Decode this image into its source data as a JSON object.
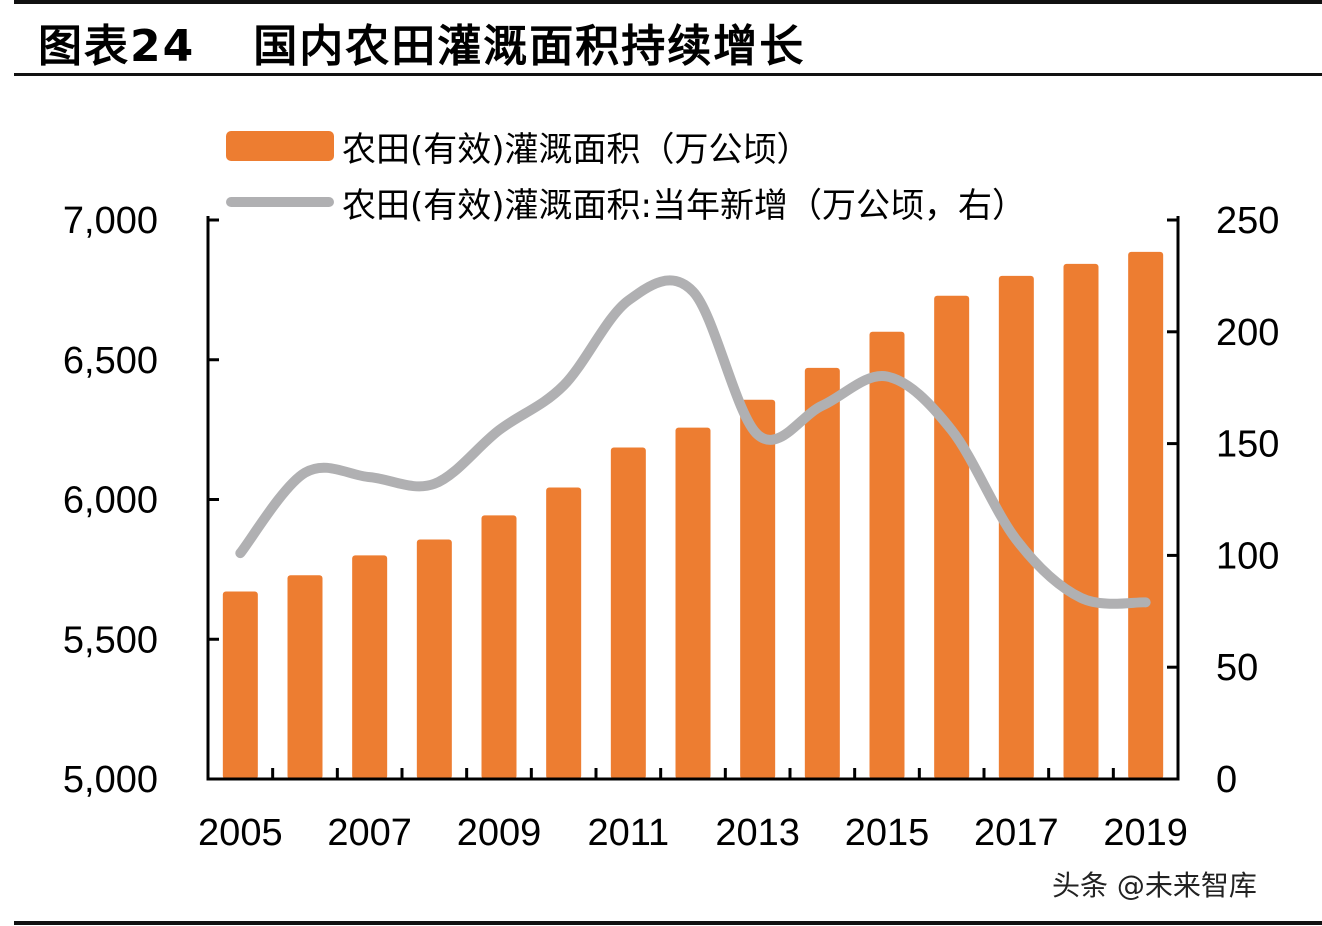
{
  "header": {
    "figure_label": "图表24",
    "title": "国内农田灌溉面积持续增长"
  },
  "watermark": "头条 @未来智库",
  "colors": {
    "bar": "#ED7D31",
    "line": "#B0B0B2",
    "axis": "#000000"
  },
  "chart_data": {
    "type": "bar+line",
    "title": "国内农田灌溉面积持续增长",
    "categories": [
      "2005",
      "2006",
      "2007",
      "2008",
      "2009",
      "2010",
      "2011",
      "2012",
      "2013",
      "2014",
      "2015",
      "2016",
      "2017",
      "2018",
      "2019"
    ],
    "x_tick_labels": [
      "2005",
      "2007",
      "2009",
      "2011",
      "2013",
      "2015",
      "2017",
      "2019"
    ],
    "series": [
      {
        "name": "农田(有效)灌溉面积（万公顷）",
        "type": "bar",
        "axis": "left",
        "values": [
          5671,
          5729,
          5800,
          5857,
          5943,
          6043,
          6186,
          6257,
          6357,
          6471,
          6600,
          6729,
          6800,
          6843,
          6886
        ]
      },
      {
        "name": "农田(有效)灌溉面积:当年新增（万公顷，右）",
        "type": "line",
        "axis": "right",
        "smooth": true,
        "values": [
          101,
          137,
          135,
          132,
          156,
          176,
          214,
          218,
          154,
          167,
          180,
          156,
          107,
          81,
          79
        ]
      }
    ],
    "y_left": {
      "lim": [
        5000,
        7000
      ],
      "ticks": [
        5000,
        5500,
        6000,
        6500,
        7000
      ],
      "tick_labels": [
        "5,000",
        "5,500",
        "6,000",
        "6,500",
        "7,000"
      ]
    },
    "y_right": {
      "lim": [
        0,
        250
      ],
      "ticks": [
        0,
        50,
        100,
        150,
        200,
        250
      ],
      "tick_labels": [
        "0",
        "50",
        "100",
        "150",
        "200",
        "250"
      ]
    },
    "legend": {
      "position": "top-left",
      "entries": [
        "农田(有效)灌溉面积（万公顷）",
        "农田(有效)灌溉面积:当年新增（万公顷，右）"
      ]
    },
    "grid": false
  }
}
